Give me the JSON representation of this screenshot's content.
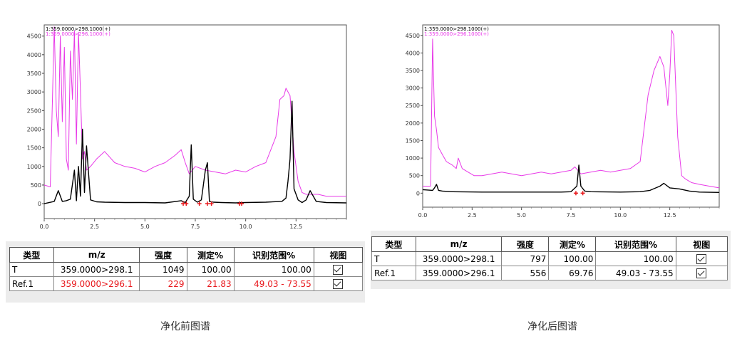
{
  "chart_data": [
    {
      "type": "line",
      "id": "before",
      "xlim": [
        0,
        15
      ],
      "ylim": [
        -400,
        4800
      ],
      "x_ticks": [
        0,
        2.5,
        5,
        7.5,
        10,
        12.5
      ],
      "x_tick_labels": [
        "0.0",
        "2.5",
        "5.0",
        "7.5",
        "10.0",
        "12.5"
      ],
      "y_ticks": [
        0,
        500,
        1000,
        1500,
        2000,
        2500,
        3000,
        3500,
        4000,
        4500
      ],
      "y_tick_labels": [
        "0",
        "500",
        "1000",
        "1500",
        "2000",
        "2500",
        "3000",
        "3500",
        "4000",
        "4500"
      ],
      "series": [
        {
          "name": "1:359.0000>298.1000(+)",
          "color": "#000000",
          "x": [
            0,
            0.5,
            0.7,
            0.9,
            1.1,
            1.3,
            1.5,
            1.6,
            1.7,
            1.8,
            1.9,
            2.0,
            2.1,
            2.3,
            2.6,
            3.0,
            4.0,
            5.0,
            6.0,
            6.8,
            7.0,
            7.2,
            7.3,
            7.4,
            7.6,
            7.8,
            8.0,
            8.1,
            8.2,
            8.4,
            8.8,
            9.5,
            10.0,
            11.0,
            11.8,
            12.0,
            12.1,
            12.2,
            12.3,
            12.4,
            12.6,
            12.8,
            13.0,
            13.2,
            13.5,
            14.0,
            15.0
          ],
          "y": [
            0,
            60,
            350,
            60,
            80,
            120,
            900,
            80,
            1000,
            200,
            2000,
            300,
            1550,
            100,
            50,
            40,
            30,
            30,
            20,
            80,
            30,
            200,
            1580,
            120,
            40,
            100,
            900,
            1100,
            60,
            40,
            30,
            20,
            30,
            40,
            60,
            150,
            600,
            1200,
            2750,
            400,
            100,
            30,
            100,
            350,
            60,
            30,
            20
          ]
        },
        {
          "name": "1:359.0000>296.1000(+)",
          "color": "#e83ae8",
          "x": [
            0,
            0.3,
            0.5,
            0.6,
            0.7,
            0.8,
            0.9,
            1.0,
            1.1,
            1.2,
            1.3,
            1.4,
            1.5,
            1.6,
            1.7,
            1.8,
            1.9,
            2.0,
            2.1,
            2.3,
            2.6,
            3.0,
            3.5,
            4.0,
            4.5,
            5.0,
            5.5,
            6.0,
            6.5,
            6.8,
            7.0,
            7.2,
            7.5,
            8.0,
            8.5,
            9.0,
            9.5,
            10.0,
            10.5,
            11.0,
            11.5,
            11.7,
            11.9,
            12.0,
            12.2,
            12.4,
            12.6,
            12.8,
            13.0,
            13.3,
            13.6,
            14.0,
            14.5,
            15.0
          ],
          "y": [
            500,
            450,
            4750,
            2500,
            1800,
            4500,
            2200,
            4200,
            1200,
            900,
            4100,
            2800,
            4650,
            1600,
            4600,
            3000,
            1200,
            1400,
            900,
            1000,
            1200,
            1400,
            1100,
            1000,
            950,
            850,
            1000,
            1100,
            1300,
            1450,
            1100,
            800,
            1000,
            900,
            850,
            800,
            900,
            850,
            1000,
            1100,
            1800,
            2800,
            2900,
            3100,
            2900,
            1400,
            600,
            300,
            250,
            250,
            250,
            200,
            200,
            200
          ]
        }
      ],
      "annotations": [
        {
          "type": "markers",
          "color": "#e8171b",
          "x": [
            6.9,
            7.05,
            7.7,
            8.1,
            8.3,
            9.7,
            9.8
          ],
          "y": [
            0,
            0,
            0,
            0,
            0,
            0,
            0
          ]
        }
      ]
    },
    {
      "type": "line",
      "id": "after",
      "xlim": [
        0,
        15
      ],
      "ylim": [
        -400,
        4800
      ],
      "x_ticks": [
        0,
        2.5,
        5,
        7.5,
        10,
        12.5
      ],
      "x_tick_labels": [
        "0.0",
        "2.5",
        "5.0",
        "7.5",
        "10.0",
        "12.5"
      ],
      "y_ticks": [
        0,
        500,
        1000,
        1500,
        2000,
        2500,
        3000,
        3500,
        4000,
        4500
      ],
      "y_tick_labels": [
        "0",
        "500",
        "1000",
        "1500",
        "2000",
        "2500",
        "3000",
        "3500",
        "4000",
        "4500"
      ],
      "series": [
        {
          "name": "1:359.0000>298.1000(+)",
          "color": "#000000",
          "x": [
            0,
            0.5,
            0.6,
            0.7,
            0.8,
            1.0,
            1.5,
            3.0,
            5.0,
            7.0,
            7.5,
            7.8,
            7.9,
            8.0,
            8.2,
            8.5,
            10.0,
            11.0,
            11.5,
            12.0,
            12.2,
            12.5,
            13.0,
            13.5,
            14.0,
            15.0
          ],
          "y": [
            100,
            80,
            150,
            250,
            80,
            60,
            40,
            30,
            30,
            30,
            40,
            200,
            800,
            200,
            60,
            40,
            30,
            40,
            80,
            200,
            280,
            150,
            120,
            60,
            30,
            20
          ]
        },
        {
          "name": "1:359.0000>296.1000(+)",
          "color": "#e83ae8",
          "x": [
            0,
            0.4,
            0.5,
            0.6,
            0.7,
            0.8,
            0.9,
            1.0,
            1.2,
            1.5,
            1.7,
            1.8,
            2.0,
            2.3,
            2.6,
            3.0,
            3.5,
            4.0,
            4.5,
            5.0,
            5.5,
            6.0,
            6.5,
            7.0,
            7.5,
            7.7,
            8.0,
            8.5,
            9.0,
            9.5,
            10.0,
            10.5,
            11.0,
            11.4,
            11.7,
            12.0,
            12.2,
            12.4,
            12.5,
            12.6,
            12.7,
            12.9,
            13.1,
            13.3,
            13.6,
            14.0,
            14.5,
            15.0
          ],
          "y": [
            200,
            200,
            4400,
            2200,
            1800,
            1300,
            1200,
            1100,
            900,
            800,
            700,
            1000,
            700,
            600,
            500,
            500,
            550,
            600,
            550,
            500,
            550,
            600,
            550,
            600,
            650,
            750,
            550,
            600,
            650,
            600,
            650,
            700,
            900,
            2800,
            3500,
            3900,
            3600,
            2500,
            3400,
            4650,
            4500,
            1600,
            500,
            400,
            300,
            250,
            200,
            150
          ]
        }
      ],
      "annotations": [
        {
          "type": "markers",
          "color": "#e8171b",
          "x": [
            7.75,
            8.1
          ],
          "y": [
            0,
            0
          ]
        }
      ]
    }
  ],
  "tables": {
    "before": {
      "headers": [
        "类型",
        "m/z",
        "强度",
        "测定%",
        "识别范围%",
        "视图"
      ],
      "rows": [
        [
          "T",
          "359.0000>298.1",
          "1049",
          "100.00",
          "100.00",
          "checked"
        ],
        [
          "Ref.1",
          "359.0000>296.1",
          "229",
          "21.83",
          "49.03 - 73.55",
          "checked"
        ]
      ]
    },
    "after": {
      "headers": [
        "类型",
        "m/z",
        "强度",
        "测定%",
        "识别范围%",
        "视图"
      ],
      "rows": [
        [
          "T",
          "359.0000>298.1",
          "797",
          "100.00",
          "100.00",
          "checked"
        ],
        [
          "Ref.1",
          "359.0000>296.1",
          "556",
          "69.76",
          "49.03 - 73.55",
          "checked"
        ]
      ]
    }
  },
  "captions": {
    "before": "净化前图谱",
    "after": "净化后图谱"
  }
}
